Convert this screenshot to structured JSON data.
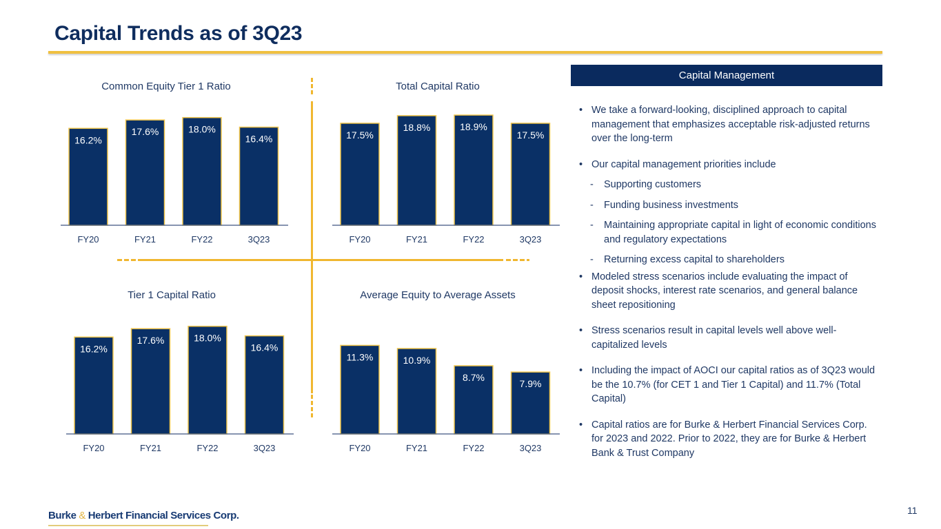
{
  "header": {
    "title": "Capital Trends as of 3Q23"
  },
  "colors": {
    "bar_fill": "#0a3066",
    "bar_outline": "#f1c54a",
    "accent_gold": "#f0b72f",
    "navy": "#0f2d5e"
  },
  "chart_data": [
    {
      "type": "bar",
      "title": "Common Equity Tier 1 Ratio",
      "categories": [
        "FY20",
        "FY21",
        "FY22",
        "3Q23"
      ],
      "values": [
        16.2,
        17.6,
        18.0,
        16.4
      ],
      "labels": [
        "16.2%",
        "17.6%",
        "18.0%",
        "16.4%"
      ],
      "xlabel": "",
      "ylabel": "",
      "ylim": [
        0,
        19
      ],
      "grid": false,
      "legend": "none"
    },
    {
      "type": "bar",
      "title": "Total Capital Ratio",
      "categories": [
        "FY20",
        "FY21",
        "FY22",
        "3Q23"
      ],
      "values": [
        17.5,
        18.8,
        18.9,
        17.5
      ],
      "labels": [
        "17.5%",
        "18.8%",
        "18.9%",
        "17.5%"
      ],
      "xlabel": "",
      "ylabel": "",
      "ylim": [
        0,
        19.5
      ],
      "grid": false,
      "legend": "none"
    },
    {
      "type": "bar",
      "title": "Tier 1 Capital Ratio",
      "categories": [
        "FY20",
        "FY21",
        "FY22",
        "3Q23"
      ],
      "values": [
        16.2,
        17.6,
        18.0,
        16.4
      ],
      "labels": [
        "16.2%",
        "17.6%",
        "18.0%",
        "16.4%"
      ],
      "xlabel": "",
      "ylabel": "",
      "ylim": [
        0,
        19
      ],
      "grid": false,
      "legend": "none"
    },
    {
      "type": "bar",
      "title": "Average Equity to Average Assets",
      "categories": [
        "FY20",
        "FY21",
        "FY22",
        "3Q23"
      ],
      "values": [
        11.3,
        10.9,
        8.7,
        7.9
      ],
      "labels": [
        "11.3%",
        "10.9%",
        "8.7%",
        "7.9%"
      ],
      "xlabel": "",
      "ylabel": "",
      "ylim": [
        0,
        14.5
      ],
      "grid": false,
      "legend": "none"
    }
  ],
  "panel": {
    "header": "Capital Management",
    "bullets": [
      {
        "text": "We take a forward-looking, disciplined approach to capital management that emphasizes acceptable risk-adjusted returns over the long-term",
        "subs": []
      },
      {
        "text": "Our capital management priorities include",
        "subs": [
          "Supporting customers",
          "Funding business investments",
          "Maintaining appropriate capital in light of economic conditions and regulatory expectations",
          "Returning excess capital to shareholders"
        ]
      },
      {
        "text": "Modeled stress scenarios include evaluating the impact of deposit shocks, interest rate scenarios, and general balance sheet repositioning",
        "subs": []
      },
      {
        "text": "Stress scenarios result in capital levels well above well-capitalized levels",
        "subs": []
      },
      {
        "text": "Including the impact of AOCI our capital ratios as of 3Q23 would be the 10.7% (for CET 1 and Tier 1 Capital) and 11.7% (Total Capital)",
        "subs": []
      },
      {
        "text": "Capital ratios are for Burke & Herbert Financial Services Corp. for 2023 and 2022. Prior to 2022, they are for Burke & Herbert Bank & Trust Company",
        "subs": []
      }
    ],
    "bullet_glyph": "•",
    "sub_glyph": "-"
  },
  "footer": {
    "logo_part1": "Burke",
    "logo_amp": "&",
    "logo_part2": "Herbert Financial Services Corp.",
    "page_number": "11"
  }
}
